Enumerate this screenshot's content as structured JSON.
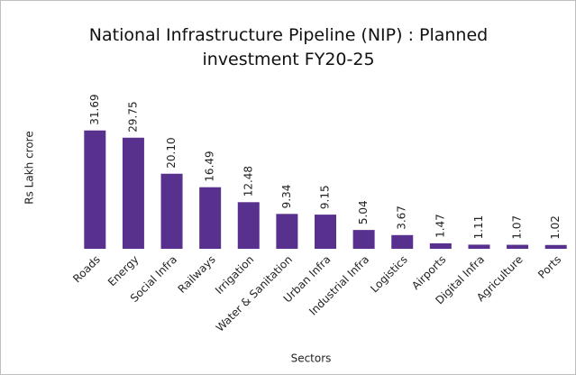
{
  "chart_data": {
    "type": "bar",
    "title": "National Infrastructure Pipeline (NIP) : Planned investment FY20-25",
    "x_label": "Sectors",
    "y_label": "Rs Lakh crore",
    "categories": [
      "Roads",
      "Energy",
      "Social Infra",
      "Railways",
      "Irrigation",
      "Water & Sanitation",
      "Urban Infra",
      "Industrial Infra",
      "Logistics",
      "Airports",
      "Digital Infra",
      "Agriculture",
      "Ports"
    ],
    "values": [
      31.69,
      29.75,
      20.1,
      16.49,
      12.48,
      9.34,
      9.15,
      5.04,
      3.67,
      1.47,
      1.11,
      1.07,
      1.02
    ],
    "value_labels": [
      "31.69",
      "29.75",
      "20.10",
      "16.49",
      "12.48",
      "9.34",
      "9.15",
      "5.04",
      "3.67",
      "1.47",
      "1.11",
      "1.07",
      "1.02"
    ],
    "color": "#58318f",
    "ylim": [
      0,
      35
    ]
  }
}
